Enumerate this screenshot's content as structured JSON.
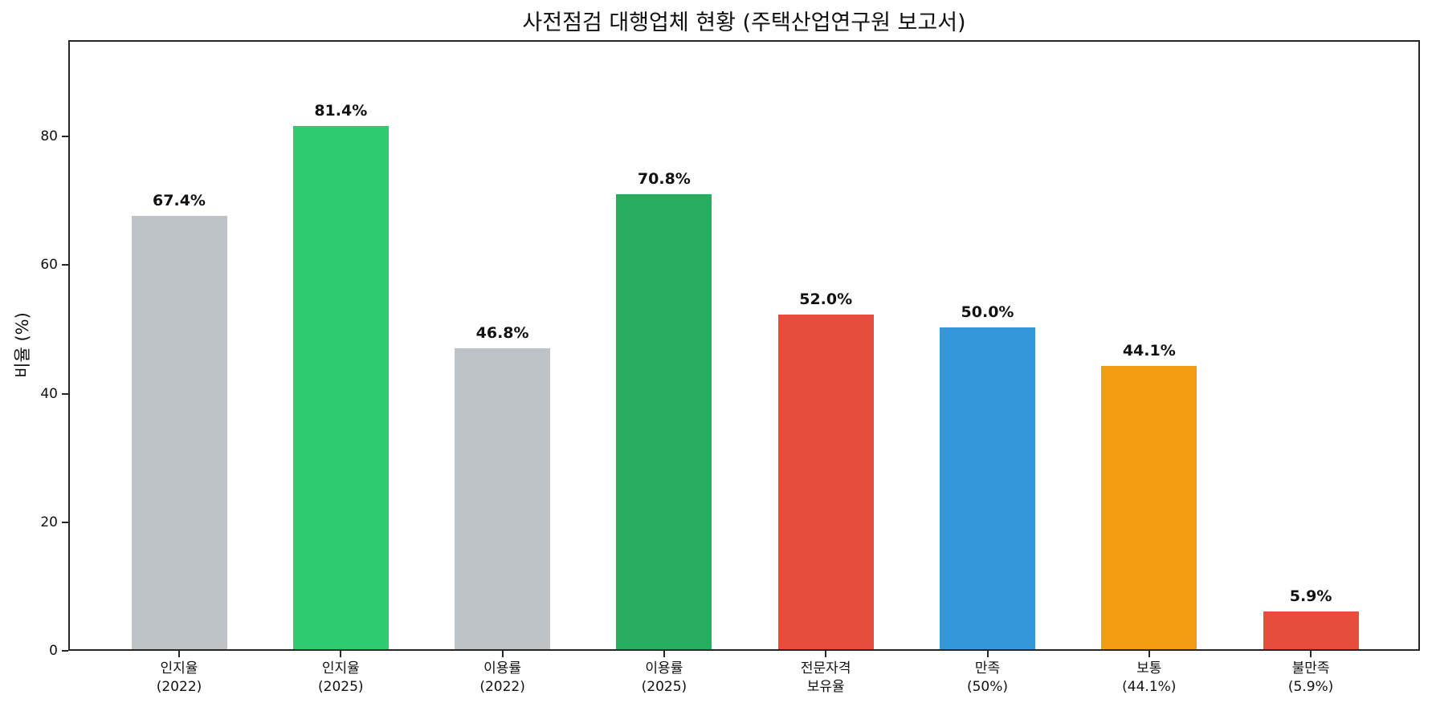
{
  "chart_data": {
    "type": "bar",
    "title": "사전점검 대행업체 현황 (주택산업연구원 보고서)",
    "xlabel": "",
    "ylabel": "비율 (%)",
    "ylim": [
      0,
      95
    ],
    "yticks": [
      0,
      20,
      40,
      60,
      80
    ],
    "grid": false,
    "legend": null,
    "categories": [
      "인지율\n(2022)",
      "인지율\n(2025)",
      "이용률\n(2022)",
      "이용률\n(2025)",
      "전문자격\n보유율",
      "만족\n(50%)",
      "보통\n(44.1%)",
      "불만족\n(5.9%)"
    ],
    "values": [
      67.4,
      81.4,
      46.8,
      70.8,
      52.0,
      50.0,
      44.1,
      5.9
    ],
    "value_labels": [
      "67.4%",
      "81.4%",
      "46.8%",
      "70.8%",
      "52.0%",
      "50.0%",
      "44.1%",
      "5.9%"
    ],
    "colors": [
      "#bdc3c7",
      "#2ecc71",
      "#bdc3c7",
      "#27ae60",
      "#e74c3c",
      "#3498db",
      "#f39c12",
      "#e74c3c"
    ]
  },
  "bars": [
    {
      "line1": "인지율",
      "line2": "(2022)",
      "value": 67.4,
      "label": "67.4%",
      "color": "#bdc3c7"
    },
    {
      "line1": "인지율",
      "line2": "(2025)",
      "value": 81.4,
      "label": "81.4%",
      "color": "#2ecc71"
    },
    {
      "line1": "이용률",
      "line2": "(2022)",
      "value": 46.8,
      "label": "46.8%",
      "color": "#bdc3c7"
    },
    {
      "line1": "이용률",
      "line2": "(2025)",
      "value": 70.8,
      "label": "70.8%",
      "color": "#27ae60"
    },
    {
      "line1": "전문자격",
      "line2": "보유율",
      "value": 52.0,
      "label": "52.0%",
      "color": "#e74c3c"
    },
    {
      "line1": "만족",
      "line2": "(50%)",
      "value": 50.0,
      "label": "50.0%",
      "color": "#3498db"
    },
    {
      "line1": "보통",
      "line2": "(44.1%)",
      "value": 44.1,
      "label": "44.1%",
      "color": "#f39c12"
    },
    {
      "line1": "불만족",
      "line2": "(5.9%)",
      "value": 5.9,
      "label": "5.9%",
      "color": "#e74c3c"
    }
  ],
  "yticks": [
    "0",
    "20",
    "40",
    "60",
    "80"
  ]
}
